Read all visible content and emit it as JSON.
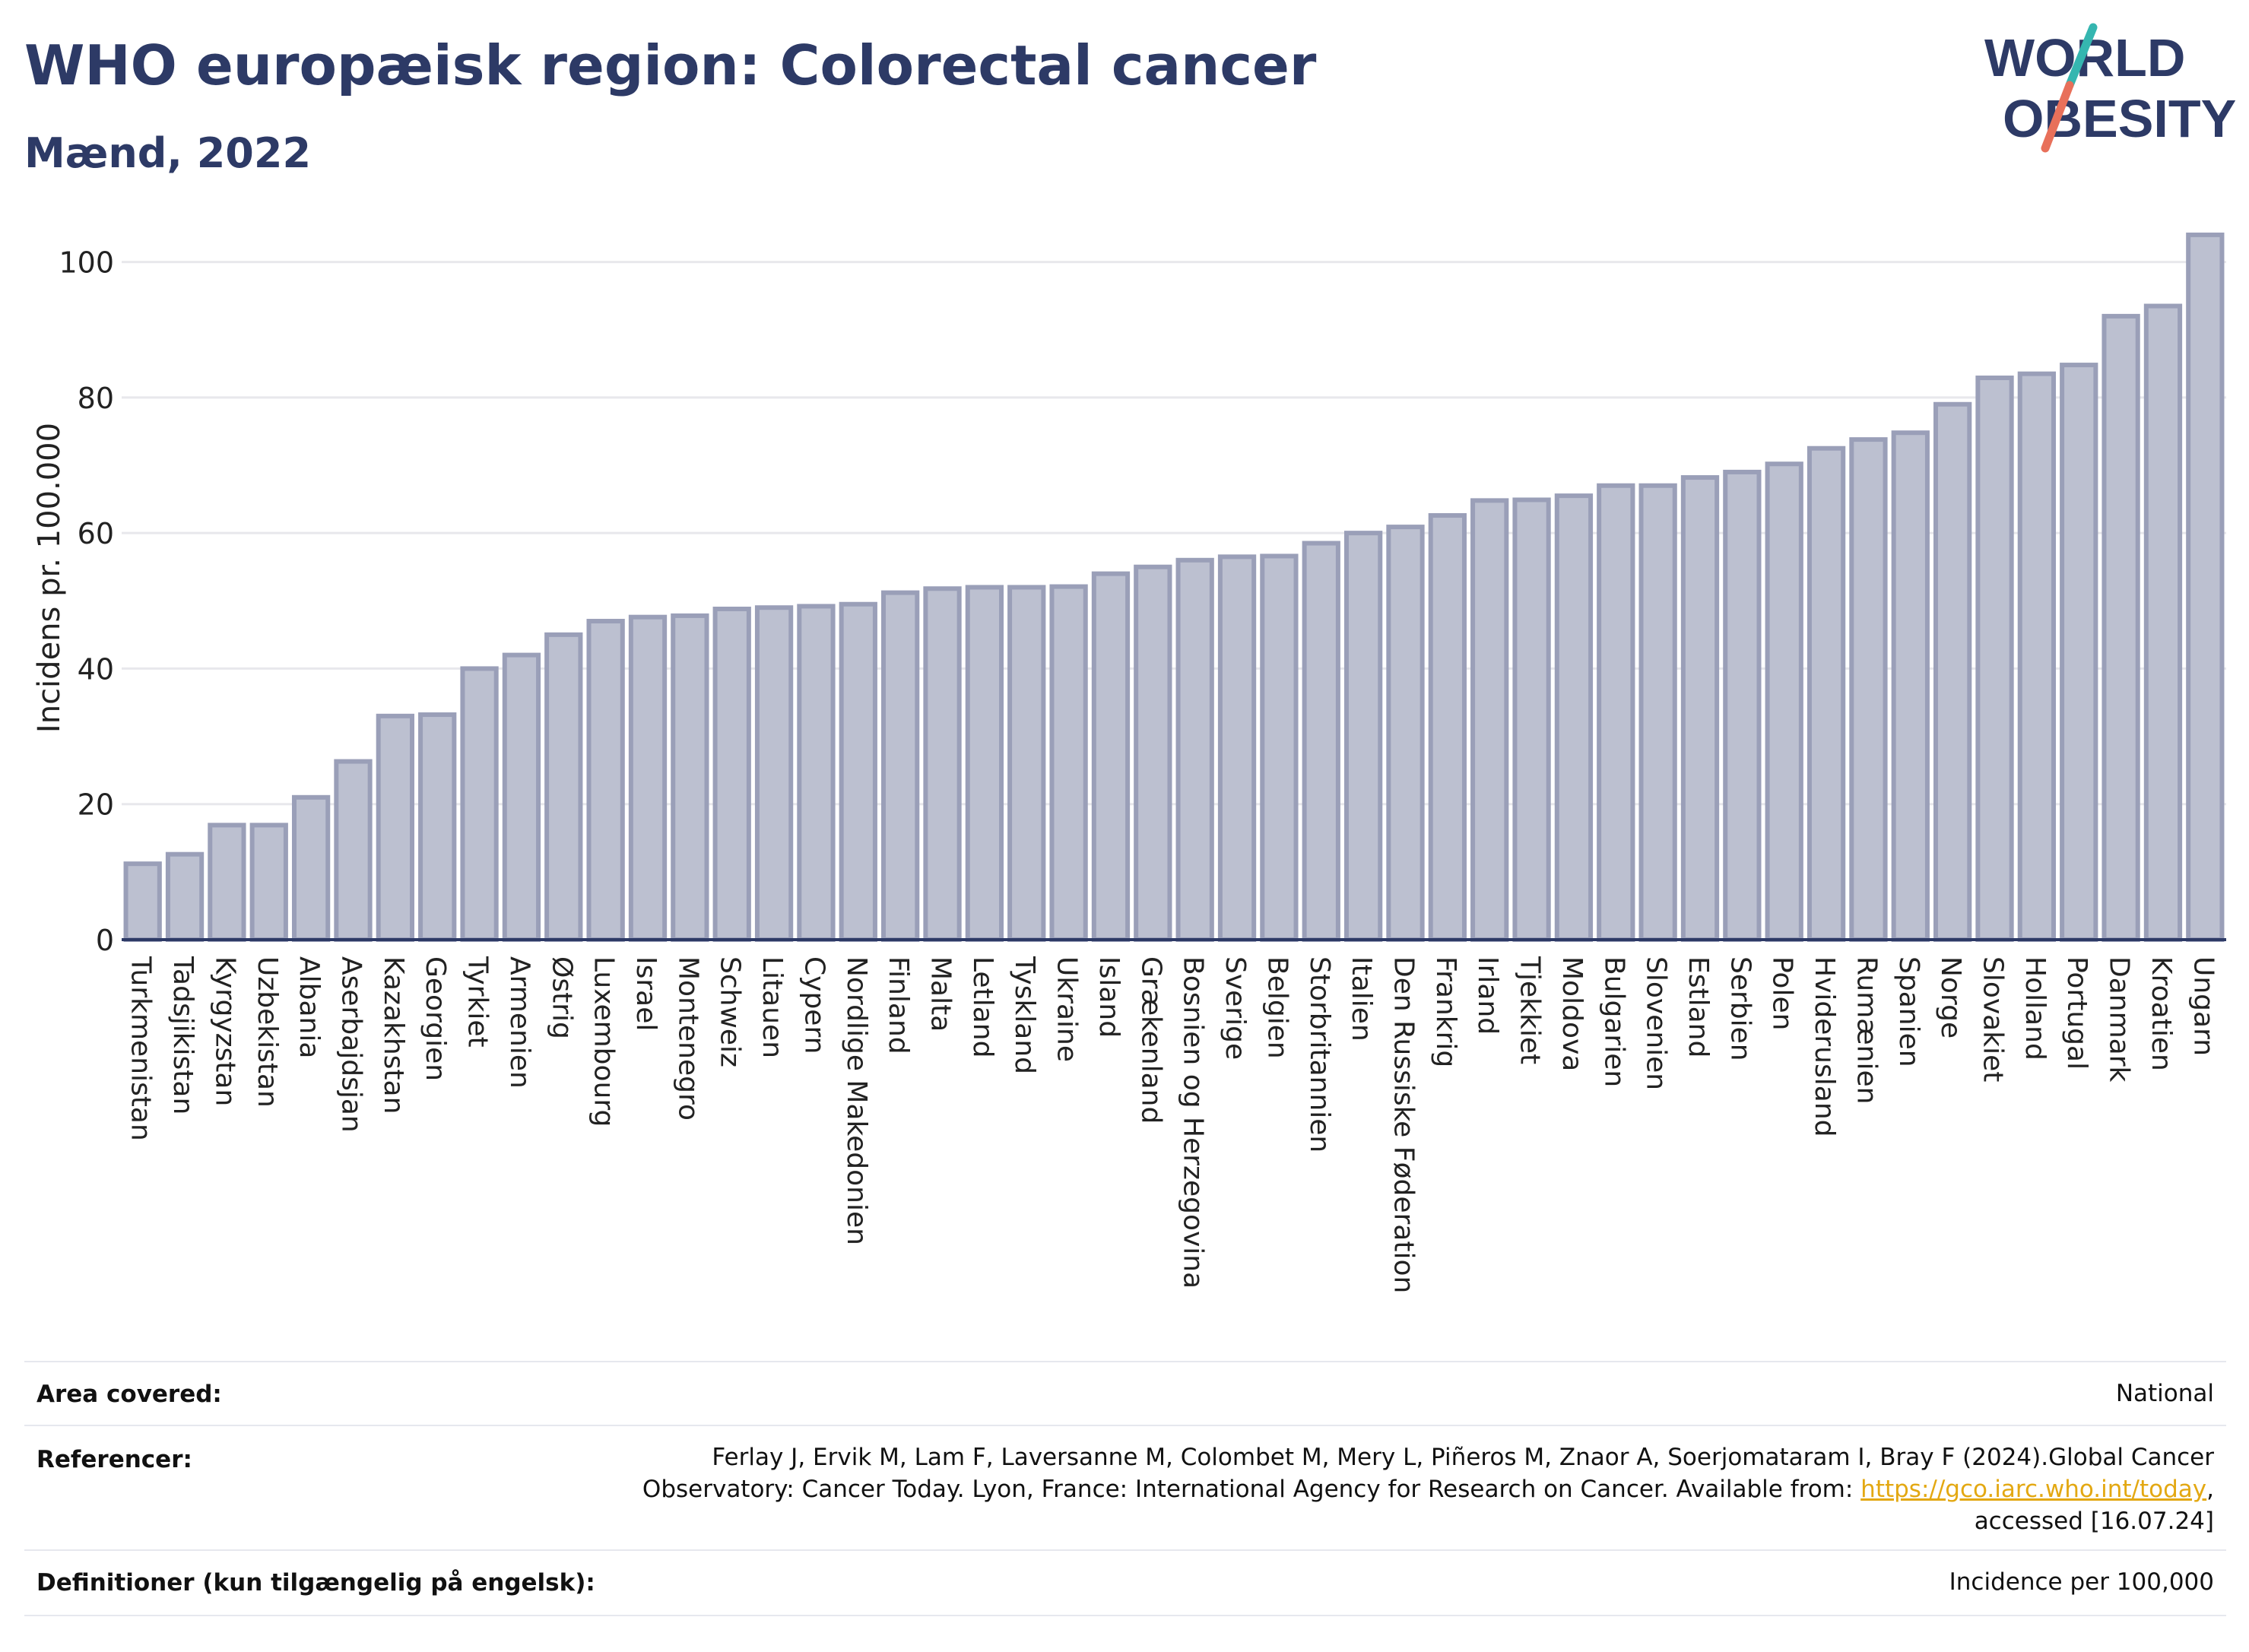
{
  "header": {
    "title": "WHO europæisk region: Colorectal cancer",
    "subtitle": "Mænd, 2022"
  },
  "logo": {
    "line1": "WORLD",
    "line2": "OBESITY",
    "colors": {
      "text": "#2d3a66",
      "slash_top": "#35b6b0",
      "slash_bottom": "#e8705a"
    }
  },
  "chart_data": {
    "type": "bar",
    "ylabel": "Incidens pr. 100.000",
    "xlabel": "",
    "ylim": [
      0,
      105
    ],
    "yticks": [
      0,
      20,
      40,
      60,
      80,
      100
    ],
    "grid": true,
    "bar_fill": "#bcc0d0",
    "bar_stroke": "#9a9fb8",
    "categories": [
      "Turkmenistan",
      "Tadsjikistan",
      "Kyrgyzstan",
      "Uzbekistan",
      "Albania",
      "Aserbajdsjan",
      "Kazakhstan",
      "Georgien",
      "Tyrkiet",
      "Armenien",
      "Østrig",
      "Luxembourg",
      "Israel",
      "Montenegro",
      "Schweiz",
      "Litauen",
      "Cypern",
      "Nordlige Makedonien",
      "Finland",
      "Malta",
      "Letland",
      "Tyskland",
      "Ukraine",
      "Island",
      "Grækenland",
      "Bosnien og Herzegovina",
      "Sverige",
      "Belgien",
      "Storbritannien",
      "Italien",
      "Den Russiske Føderation",
      "Frankrig",
      "Irland",
      "Tjekkiet",
      "Moldova",
      "Bulgarien",
      "Slovenien",
      "Estland",
      "Serbien",
      "Polen",
      "Hviderusland",
      "Rumænien",
      "Spanien",
      "Norge",
      "Slovakiet",
      "Holland",
      "Portugal",
      "Danmark",
      "Kroatien",
      "Ungarn"
    ],
    "values": [
      11.2,
      12.6,
      16.9,
      16.9,
      21.0,
      26.3,
      33.0,
      33.2,
      40.0,
      42.0,
      45.0,
      47.0,
      47.6,
      47.8,
      48.8,
      49.0,
      49.2,
      49.5,
      51.2,
      51.8,
      52.0,
      52.0,
      52.1,
      54.0,
      55.0,
      56.0,
      56.5,
      56.6,
      58.5,
      60.0,
      60.9,
      62.6,
      64.8,
      64.9,
      65.5,
      67.0,
      67.0,
      68.2,
      69.0,
      70.2,
      72.5,
      73.8,
      74.8,
      79.0,
      82.9,
      83.5,
      84.8,
      92.0,
      93.5,
      104.0
    ]
  },
  "info": {
    "area_label": "Area covered:",
    "area_value": "National",
    "ref_label": "Referencer:",
    "ref_line1": "Ferlay J, Ervik M, Lam F, Laversanne M, Colombet M, Mery L, Piñeros M, Znaor A, Soerjomataram I, Bray F (2024).Global Cancer",
    "ref_line2_pre": "Observatory: Cancer Today. Lyon, France: International Agency for Research on Cancer. Available from: ",
    "ref_link": "https://gco.iarc.who.int/today",
    "ref_line2_post": ",",
    "ref_line3": "accessed [16.07.24]",
    "def_label": "Definitioner (kun tilgængelig på engelsk):",
    "def_value": "Incidence per 100,000"
  }
}
